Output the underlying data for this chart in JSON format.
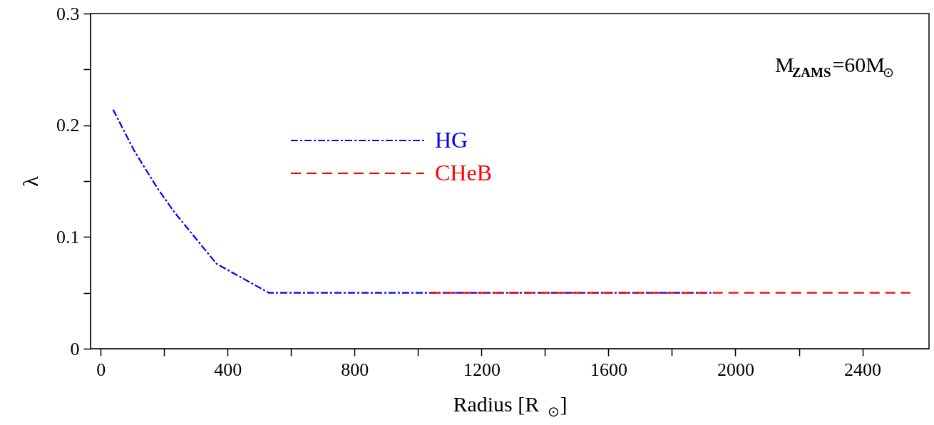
{
  "chart_data": {
    "type": "line",
    "xlabel": "Radius [R$_{⊙}$]",
    "ylabel": "λ",
    "xlim": [
      -32,
      2610
    ],
    "ylim": [
      0,
      0.3
    ],
    "xticks": [
      0,
      {
        "value": 200,
        "label": null
      },
      400,
      {
        "value": 600,
        "label": null
      },
      800,
      {
        "value": 1000,
        "label": null
      },
      1200,
      {
        "value": 1400,
        "label": null
      },
      1600,
      {
        "value": 1800,
        "label": null
      },
      2000,
      {
        "value": 2200,
        "label": null
      },
      2400
    ],
    "yticks": [
      0,
      {
        "value": 0.05,
        "label": null
      },
      0.1,
      {
        "value": 0.15,
        "label": null
      },
      0.2,
      {
        "value": 0.25,
        "label": null
      },
      0.3
    ],
    "series": [
      {
        "name": "HG",
        "color": "#0000ff",
        "line_style": "dashdot",
        "x": [
          39,
          106,
          178,
          230,
          290,
          365,
          530,
          1924
        ],
        "values": [
          0.214,
          0.177,
          0.144,
          0.123,
          0.102,
          0.076,
          0.05,
          0.05
        ]
      },
      {
        "name": "CHeB",
        "color": "#ff0000",
        "line_style": "dashed",
        "x": [
          1039,
          2551
        ],
        "values": [
          0.05,
          0.05
        ]
      }
    ],
    "annotations": [
      "M$_{ZAMS}$=60M$_{⊙}$"
    ],
    "legend": "top left",
    "grid": false,
    "marker": "none"
  }
}
